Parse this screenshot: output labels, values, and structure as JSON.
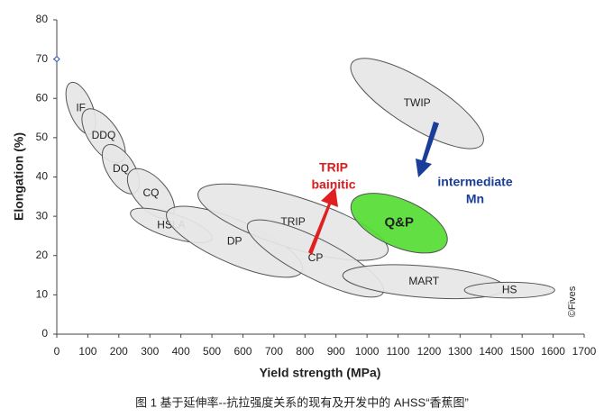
{
  "chart_data": {
    "type": "region",
    "x_label": "Yield strength (MPa)",
    "y_label": "Elongation (%)",
    "xlim": [
      0,
      1700
    ],
    "xticks": [
      0,
      100,
      200,
      300,
      400,
      500,
      600,
      700,
      800,
      900,
      1000,
      1100,
      1200,
      1300,
      1400,
      1500,
      1600,
      1700
    ],
    "ylim": [
      0,
      80
    ],
    "yticks": [
      0,
      10,
      20,
      30,
      40,
      50,
      60,
      70,
      80
    ],
    "regions": [
      {
        "name": "IF",
        "x": [
          45,
          110
        ],
        "y": [
          64,
          51
        ],
        "thickness": 6,
        "color": "#e6e6e6"
      },
      {
        "name": "DDQ",
        "x": [
          93,
          209
        ],
        "y": [
          57,
          44
        ],
        "thickness": 7.5,
        "color": "#e6e6e6"
      },
      {
        "name": "DQ",
        "x": [
          160,
          253
        ],
        "y": [
          48,
          36
        ],
        "thickness": 7,
        "color": "#e6e6e6"
      },
      {
        "name": "CQ",
        "x": [
          238,
          369
        ],
        "y": [
          41.5,
          30
        ],
        "thickness": 8,
        "color": "#e6e6e6"
      },
      {
        "name": "HSLA",
        "x": [
          238,
          500
        ],
        "y": [
          31,
          24.3
        ],
        "thickness": 6,
        "color": "#e6e6e6"
      },
      {
        "name": "DP",
        "x": [
          355,
          791
        ],
        "y": [
          31,
          16
        ],
        "thickness": 11,
        "color": "#e6e6e6"
      },
      {
        "name": "TRIP",
        "x": [
          456,
          1067
        ],
        "y": [
          36,
          21
        ],
        "thickness": 13,
        "color": "#e6e6e6"
      },
      {
        "name": "CP",
        "x": [
          616,
          1052
        ],
        "y": [
          28,
          10.5
        ],
        "thickness": 10,
        "color": "#e6e6e6"
      },
      {
        "name": "MART",
        "x": [
          922,
          1445
        ],
        "y": [
          15,
          11.7
        ],
        "thickness": 8,
        "color": "#e6e6e6"
      },
      {
        "name": "HS",
        "x": [
          1314,
          1605
        ],
        "y": [
          11.2,
          11.2
        ],
        "thickness": 4,
        "color": "#e6e6e6"
      },
      {
        "name": "TWIP",
        "x": [
          951,
          1372
        ],
        "y": [
          69,
          48.4
        ],
        "thickness": 12,
        "color": "#e6e6e6"
      },
      {
        "name": "Q&P",
        "x": [
          951,
          1256
        ],
        "y": [
          33.5,
          23
        ],
        "thickness": 12,
        "color": "#55dd33"
      }
    ],
    "points": [
      {
        "x": 0,
        "y": 70
      }
    ],
    "annotations": [
      "TRIP",
      "bainitic",
      "intermediate",
      "Mn"
    ],
    "copyright": "©Fives",
    "caption": "图 1 基于延伸率--抗拉强度关系的现有及开发中的 AHSS“香蕉图”"
  }
}
